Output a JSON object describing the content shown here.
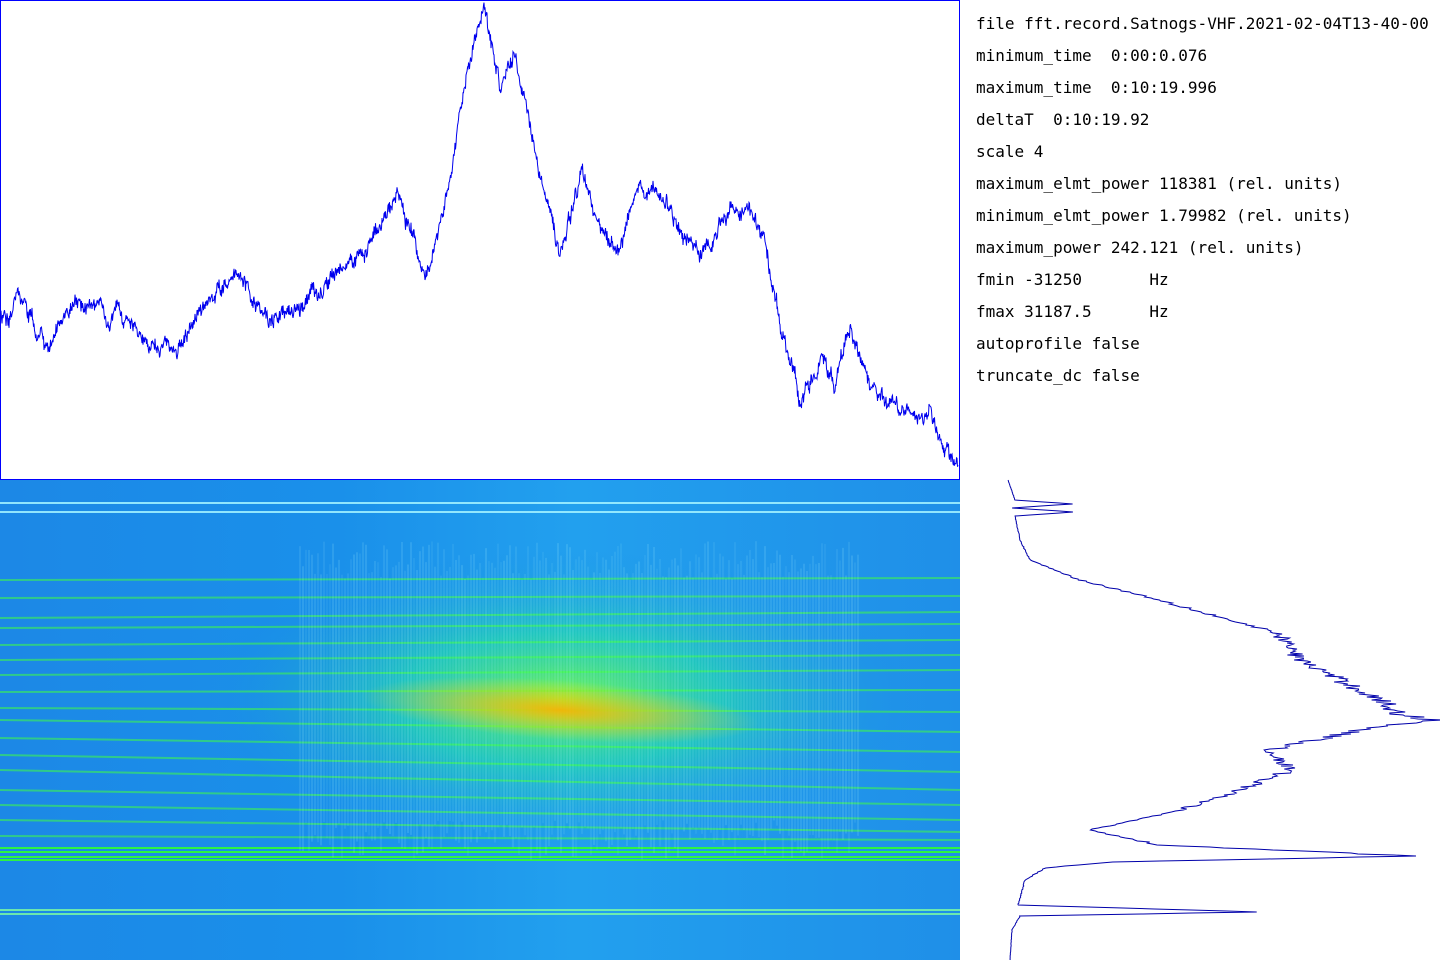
{
  "info": {
    "lines": [
      "file fft.record.Satnogs-VHF.2021-02-04T13-40-00",
      "minimum_time  0:00:0.076",
      "maximum_time  0:10:19.996",
      "deltaT  0:10:19.92",
      "scale 4",
      "maximum_elmt_power 118381 (rel. units)",
      "minimum_elmt_power 1.79982 (rel. units)",
      "maximum_power 242.121 (rel. units)",
      "fmin -31250       Hz",
      "fmax 31187.5      Hz",
      "autoprofile false",
      "truncate_dc false"
    ]
  }
}
